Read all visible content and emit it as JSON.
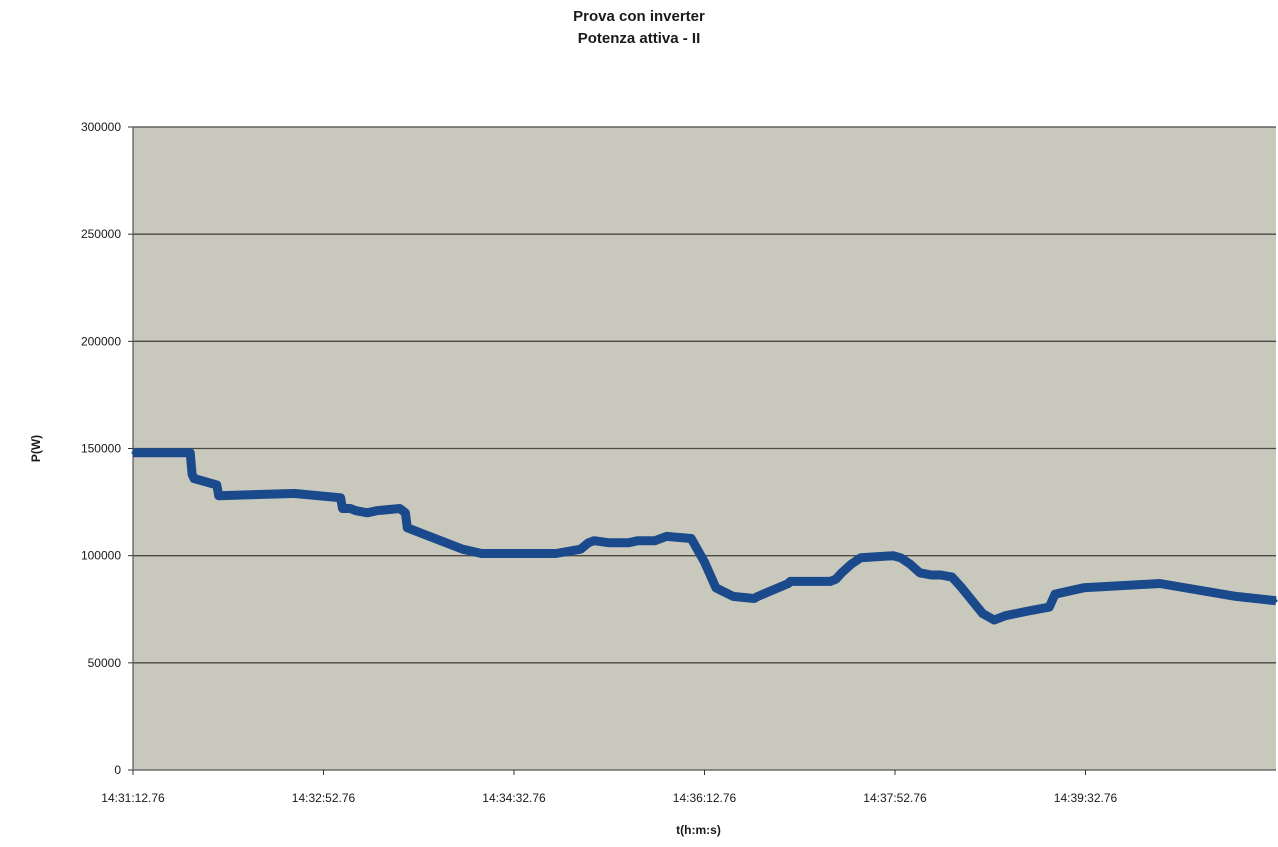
{
  "chart_data": {
    "type": "line",
    "title": "Prova con inverter",
    "subtitle": "Potenza attiva - II",
    "xlabel": "t(h:m:s)",
    "ylabel": "P(W)",
    "ylim": [
      0,
      300000
    ],
    "yticks": [
      "0",
      "50000",
      "100000",
      "150000",
      "200000",
      "250000",
      "300000"
    ],
    "xtick_labels": [
      "14:31:12.76",
      "14:32:52.76",
      "14:34:32.76",
      "14:36:12.76",
      "14:37:52.76",
      "14:39:32.76"
    ],
    "x_start": "14:31:12.76",
    "x_end": "14:41:12.76",
    "grid": "horizontal",
    "legend": "none",
    "colors": {
      "series": "#1b4a8c",
      "plot_bg": "#c9c8bc",
      "grid": "#4a4a44"
    },
    "series": [
      {
        "x": [
          "14:31:12.76",
          "14:31:42.76",
          "14:31:43.76",
          "14:31:44.76",
          "14:31:56.76",
          "14:31:57.76",
          "14:32:36.76",
          "14:32:37.76",
          "14:33:01.76",
          "14:33:02.76",
          "14:33:06.76",
          "14:33:09.76",
          "14:33:15.76",
          "14:33:20.76",
          "14:33:32.76",
          "14:33:35.76",
          "14:33:36.76",
          "14:34:05.76",
          "14:34:15.76",
          "14:34:54.76",
          "14:35:07.76",
          "14:35:11.76",
          "14:35:14.76",
          "14:35:22.76",
          "14:35:32.76",
          "14:35:37.76",
          "14:35:46.76",
          "14:35:52.76",
          "14:36:05.76",
          "14:36:12.76",
          "14:36:18.76",
          "14:36:27.76",
          "14:36:38.76",
          "14:36:40.76",
          "14:36:56.76",
          "14:36:57.76",
          "14:37:18.76",
          "14:37:21.76",
          "14:37:24.76",
          "14:37:29.76",
          "14:37:34.76",
          "14:37:51.76",
          "14:37:55.76",
          "14:38:00.76",
          "14:38:05.76",
          "14:38:11.76",
          "14:38:16.76",
          "14:38:22.76",
          "14:38:27.76",
          "14:38:38.76",
          "14:38:44.76",
          "14:38:50.76",
          "14:39:01.76",
          "14:39:13.76",
          "14:39:16.76",
          "14:39:31.76",
          "14:40:11.76",
          "14:40:51.76",
          "14:41:12.76"
        ],
        "values": [
          148000,
          148000,
          138000,
          136000,
          133000,
          128000,
          129000,
          129000,
          127000,
          122000,
          122000,
          121000,
          120000,
          121000,
          122000,
          120000,
          113000,
          103000,
          101000,
          101000,
          103000,
          106000,
          107000,
          106000,
          106000,
          107000,
          107000,
          109000,
          108000,
          97000,
          85000,
          81000,
          80000,
          81000,
          87000,
          88000,
          88000,
          89000,
          92000,
          96000,
          99000,
          100000,
          99000,
          96000,
          92000,
          91000,
          91000,
          90000,
          85000,
          73000,
          70000,
          72000,
          74000,
          76000,
          82000,
          85000,
          87000,
          81000,
          79000
        ]
      }
    ]
  }
}
